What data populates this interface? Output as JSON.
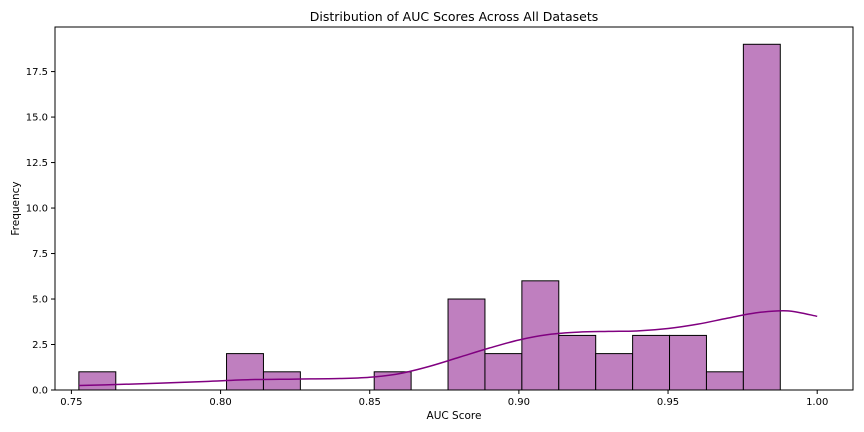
{
  "chart_data": {
    "type": "bar",
    "title": "Distribution of AUC Scores Across All Datasets",
    "xlabel": "AUC Score",
    "ylabel": "Frequency",
    "xlim": [
      0.7445,
      1.012
    ],
    "ylim": [
      0,
      19.95
    ],
    "x_ticks": [
      0.75,
      0.8,
      0.85,
      0.9,
      0.95,
      1.0
    ],
    "x_tick_labels": [
      "0.75",
      "0.80",
      "0.85",
      "0.90",
      "0.95",
      "1.00"
    ],
    "y_ticks": [
      0,
      2.5,
      5,
      7.5,
      10,
      12.5,
      15,
      17.5
    ],
    "y_tick_labels": [
      "0.0",
      "2.5",
      "5.0",
      "7.5",
      "10.0",
      "12.5",
      "15.0",
      "17.5"
    ],
    "grid": false,
    "bins": {
      "start": 0.7525,
      "width": 0.012375,
      "counts": [
        1,
        0,
        0,
        0,
        2,
        1,
        0,
        0,
        1,
        0,
        5,
        2,
        6,
        3,
        2,
        3,
        3,
        1,
        19,
        0
      ]
    },
    "kde": {
      "x": [
        0.7525,
        0.765,
        0.78,
        0.795,
        0.81,
        0.825,
        0.84,
        0.85,
        0.86,
        0.87,
        0.88,
        0.89,
        0.9,
        0.91,
        0.92,
        0.93,
        0.94,
        0.95,
        0.96,
        0.97,
        0.98,
        0.99,
        1.0
      ],
      "y": [
        0.25,
        0.3,
        0.38,
        0.47,
        0.57,
        0.6,
        0.63,
        0.7,
        0.9,
        1.3,
        1.8,
        2.3,
        2.75,
        3.05,
        3.18,
        3.22,
        3.25,
        3.38,
        3.62,
        3.95,
        4.25,
        4.35,
        4.05
      ]
    },
    "colors": {
      "bar_fill": "#bf7fbf",
      "bar_edge": "#000000",
      "kde_line": "#800080"
    }
  }
}
